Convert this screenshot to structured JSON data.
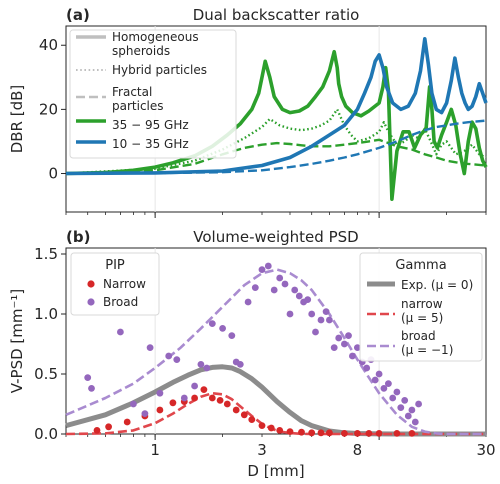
{
  "chart_data": [
    {
      "type": "line",
      "panel_label": "(a)",
      "title": "Dual backscatter ratio",
      "ylabel": "DBR [dB]",
      "xlabel": "",
      "xscale": "log",
      "xlim": [
        0.4,
        30
      ],
      "ylim": [
        -12,
        46
      ],
      "yticks": [
        0,
        20,
        40
      ],
      "grid": true,
      "legend": {
        "placement": "top-left",
        "entries": [
          {
            "label": "Homogeneous spheroids",
            "lines": [
              "Homogeneous",
              "spheroids"
            ],
            "style": "solid-thick-grey"
          },
          {
            "label": "Hybrid particles",
            "lines": [
              "Hybrid particles"
            ],
            "style": "dotted-grey"
          },
          {
            "label": "Fractal particles",
            "lines": [
              "Fractal",
              "particles"
            ],
            "style": "dashed-grey"
          },
          {
            "label": "35 − 95 GHz",
            "lines": [
              "35 − 95 GHz"
            ],
            "style": "solid-green"
          },
          {
            "label": "10 − 35 GHz",
            "lines": [
              "10 − 35 GHz"
            ],
            "style": "solid-blue"
          }
        ]
      },
      "colors": {
        "green": "#2ca02c",
        "blue": "#1f77b4",
        "grey": "#bfbfbf"
      },
      "series": [
        {
          "band": "35 − 95 GHz",
          "particle": "Homogeneous spheroids",
          "style": "solid",
          "color": "#2ca02c",
          "x": [
            0.4,
            0.6,
            0.8,
            1.0,
            1.2,
            1.5,
            1.8,
            2.1,
            2.4,
            2.7,
            2.9,
            3.0,
            3.1,
            3.25,
            3.4,
            3.7,
            4.0,
            4.4,
            4.8,
            5.2,
            5.6,
            6.0,
            6.3,
            6.5,
            6.6,
            6.8,
            7.1,
            7.6,
            8.3,
            9.0,
            10.0,
            10.4,
            10.7,
            11.0,
            11.4,
            12.0,
            12.8,
            13.6,
            14.4,
            15.3,
            16.2,
            16.8,
            17.2,
            17.6,
            18.2,
            19.0,
            20.0,
            21.0,
            22.0,
            23.0,
            24.0,
            25.0,
            26.0,
            27.0,
            28.0,
            29.0,
            30.0
          ],
          "y": [
            0,
            0.3,
            1.0,
            2.0,
            3.3,
            5.5,
            8.5,
            12,
            15.5,
            20,
            25,
            30,
            35,
            30,
            24,
            20,
            19,
            19.5,
            21,
            24,
            27,
            32,
            38,
            33,
            28,
            24,
            21,
            19,
            18,
            19.5,
            22,
            27,
            33,
            26,
            -8,
            7,
            13,
            13,
            8,
            12,
            14,
            27,
            20,
            10,
            8,
            12,
            16,
            20,
            15,
            6,
            0,
            10,
            16,
            14,
            8,
            4,
            2
          ]
        },
        {
          "band": "35 − 95 GHz",
          "particle": "Hybrid particles",
          "style": "dotted",
          "color": "#2ca02c",
          "x": [
            0.4,
            1.0,
            1.5,
            2.0,
            2.5,
            3.0,
            3.25,
            3.6,
            4.0,
            4.5,
            5.0,
            5.5,
            6.0,
            6.5,
            7.0,
            7.5,
            8.0,
            9.0,
            10.0,
            10.5,
            11.0,
            12.0,
            13.0,
            14.0,
            15.0,
            16.0,
            17.0,
            18.0,
            19.0,
            20.0,
            21.0,
            22.0,
            24.0,
            26.0,
            28.0,
            30.0
          ],
          "y": [
            0,
            1.5,
            4,
            7.5,
            11,
            14.5,
            17,
            15,
            14,
            13.5,
            14,
            15,
            16.5,
            20,
            15,
            12,
            10,
            11,
            13,
            16,
            13,
            9,
            10,
            12,
            11,
            14,
            10,
            6,
            9,
            10,
            8,
            6,
            7,
            9,
            6,
            5
          ]
        },
        {
          "band": "35 − 95 GHz",
          "particle": "Fractal particles",
          "style": "dashed",
          "color": "#2ca02c",
          "x": [
            0.4,
            1.0,
            1.5,
            2.0,
            2.5,
            3.0,
            3.5,
            4.0,
            4.5,
            5.0,
            6.0,
            7.0,
            8.0,
            9.0,
            10.0,
            11.0,
            12.0,
            14.0,
            16.0,
            18.0,
            20.0,
            22.0,
            25.0,
            30.0
          ],
          "y": [
            0,
            1,
            3,
            6,
            8,
            9,
            9.5,
            9.2,
            8.8,
            8.5,
            8.5,
            9,
            9.5,
            10,
            10.5,
            9.5,
            8.5,
            7.5,
            6,
            5,
            4,
            3.5,
            3,
            2.5
          ]
        },
        {
          "band": "10 − 35 GHz",
          "particle": "Homogeneous spheroids",
          "style": "solid",
          "color": "#1f77b4",
          "x": [
            0.4,
            1.0,
            2.0,
            3.0,
            4.0,
            5.0,
            6.0,
            7.0,
            8.0,
            8.6,
            9.2,
            9.6,
            10.0,
            10.4,
            10.8,
            11.5,
            12.5,
            13.5,
            14.5,
            15.3,
            16.0,
            16.6,
            17.2,
            18.0,
            19.0,
            20.0,
            21.0,
            21.8,
            22.6,
            23.4,
            24.2,
            25.0,
            26.0,
            27.0,
            28.0,
            29.0,
            30.0
          ],
          "y": [
            0,
            0.2,
            0.8,
            2.5,
            5,
            8.5,
            12,
            15,
            20,
            25,
            30,
            35,
            37,
            33,
            27,
            22,
            20,
            21,
            25,
            32,
            42,
            34,
            25,
            20,
            19,
            22,
            29,
            36,
            30,
            25,
            22,
            20,
            21,
            24,
            28,
            25,
            22
          ]
        },
        {
          "band": "10 − 35 GHz",
          "particle": "Fractal particles",
          "style": "dashed",
          "color": "#1f77b4",
          "x": [
            0.4,
            1.0,
            2.0,
            3.0,
            4.0,
            5.0,
            6.0,
            7.0,
            8.0,
            10.0,
            12.0,
            14.0,
            16.0,
            18.0,
            20.0,
            22.0,
            25.0,
            30.0
          ],
          "y": [
            0,
            0.1,
            0.4,
            1,
            2,
            3,
            4,
            5,
            6,
            8,
            10,
            12,
            13.5,
            14.5,
            15,
            15.5,
            16,
            16.5
          ]
        }
      ]
    },
    {
      "type": "scatter",
      "panel_label": "(b)",
      "title": "Volume-weighted PSD",
      "ylabel": "V-PSD [mm⁻¹]",
      "xlabel": "D [mm]",
      "xscale": "log",
      "xlim": [
        0.4,
        30
      ],
      "ylim": [
        0,
        1.55
      ],
      "xticks": [
        1,
        3,
        8,
        30
      ],
      "yticks": [
        0.0,
        0.5,
        1.0,
        1.5
      ],
      "grid": true,
      "legends": [
        {
          "title": "PIP",
          "placement": "top-left",
          "entries": [
            {
              "label": "Narrow",
              "marker": "dot",
              "color": "#d62728"
            },
            {
              "label": "Broad",
              "marker": "dot",
              "color": "#9467bd"
            }
          ]
        },
        {
          "title": "Gamma",
          "placement": "top-right",
          "entries": [
            {
              "label": "Exp. (μ = 0)",
              "lines": [
                "Exp. (μ = 0)"
              ],
              "style": "solid-thick",
              "color": "#8c8c8c"
            },
            {
              "label": "narrow (μ = 5)",
              "lines": [
                "narrow",
                "(μ = 5)"
              ],
              "style": "dashed",
              "color": "#e0474c"
            },
            {
              "label": "broad (μ = −1)",
              "lines": [
                "broad",
                "(μ = −1)"
              ],
              "style": "dashed",
              "color": "#a98bd0"
            }
          ]
        }
      ],
      "series": [
        {
          "name": "Narrow",
          "kind": "points",
          "color": "#d62728",
          "x": [
            0.55,
            0.62,
            0.75,
            0.9,
            1.05,
            1.2,
            1.35,
            1.5,
            1.65,
            1.8,
            1.95,
            2.1,
            2.3,
            2.5,
            2.7,
            3.0,
            3.3,
            3.6,
            4.0,
            4.5,
            5.0,
            5.5,
            6.0,
            7.0,
            8.0,
            9.0,
            10.0,
            12.0,
            14.0
          ],
          "y": [
            0.03,
            0.06,
            0.1,
            0.15,
            0.2,
            0.26,
            0.27,
            0.3,
            0.37,
            0.3,
            0.28,
            0.25,
            0.2,
            0.16,
            0.12,
            0.07,
            0.05,
            0.03,
            0.02,
            0.015,
            0.01,
            0.01,
            0.01,
            0.005,
            0.005,
            0.005,
            0.005,
            0.005,
            0.005
          ]
        },
        {
          "name": "Broad",
          "kind": "points",
          "color": "#9467bd",
          "x": [
            0.5,
            0.52,
            0.7,
            0.8,
            0.9,
            0.95,
            1.05,
            1.15,
            1.25,
            1.35,
            1.5,
            1.6,
            1.7,
            1.8,
            2.0,
            2.2,
            2.3,
            2.4,
            2.6,
            2.8,
            3.0,
            3.2,
            3.4,
            3.6,
            3.8,
            4.0,
            4.2,
            4.4,
            4.6,
            4.8,
            5.0,
            5.2,
            5.5,
            5.8,
            6.0,
            6.3,
            6.6,
            7.0,
            7.3,
            7.6,
            8.0,
            8.4,
            8.8,
            9.2,
            9.6,
            10.0,
            10.5,
            11.0,
            11.5,
            12.0,
            12.5,
            13.0,
            13.5,
            14.0,
            14.5,
            15.0
          ],
          "y": [
            0.47,
            0.38,
            0.85,
            0.25,
            0.17,
            0.72,
            0.34,
            0.65,
            0.62,
            0.3,
            0.4,
            0.58,
            0.55,
            0.92,
            0.88,
            0.82,
            0.6,
            0.58,
            1.1,
            1.22,
            1.37,
            1.4,
            1.2,
            1.3,
            1.25,
            1.0,
            1.2,
            1.15,
            1.1,
            1.12,
            1.0,
            0.85,
            0.95,
            1.02,
            0.95,
            0.72,
            0.8,
            0.75,
            0.82,
            0.65,
            0.72,
            0.6,
            0.55,
            0.62,
            0.45,
            0.5,
            0.38,
            0.42,
            0.3,
            0.35,
            0.22,
            0.28,
            0.15,
            0.2,
            0.1,
            0.25
          ]
        },
        {
          "name": "Exp. (μ = 0)",
          "kind": "line",
          "style": "solid",
          "color": "#8c8c8c",
          "x": [
            0.4,
            0.6,
            0.8,
            1.0,
            1.2,
            1.4,
            1.6,
            1.8,
            2.0,
            2.2,
            2.4,
            2.7,
            3.0,
            3.5,
            4.0,
            4.5,
            5.0,
            6.0,
            7.0,
            8.0,
            10.0,
            12.0,
            15.0,
            20.0,
            30.0
          ],
          "y": [
            0.07,
            0.16,
            0.26,
            0.35,
            0.43,
            0.49,
            0.535,
            0.555,
            0.56,
            0.55,
            0.52,
            0.46,
            0.39,
            0.27,
            0.18,
            0.11,
            0.07,
            0.025,
            0.01,
            0.004,
            0.001,
            0,
            0,
            0,
            0
          ]
        },
        {
          "name": "narrow (μ = 5)",
          "kind": "line",
          "style": "dashed",
          "color": "#e0474c",
          "x": [
            0.4,
            0.6,
            0.8,
            1.0,
            1.2,
            1.4,
            1.6,
            1.8,
            2.0,
            2.2,
            2.4,
            2.7,
            3.0,
            3.3,
            3.6,
            4.0,
            4.5,
            5.0,
            6.0,
            8.0,
            12.0,
            30.0
          ],
          "y": [
            0,
            0.005,
            0.03,
            0.09,
            0.17,
            0.25,
            0.31,
            0.34,
            0.33,
            0.29,
            0.23,
            0.15,
            0.085,
            0.045,
            0.02,
            0.008,
            0.002,
            0,
            0,
            0,
            0,
            0
          ]
        },
        {
          "name": "broad (μ = −1)",
          "kind": "line",
          "style": "dashed",
          "color": "#a98bd0",
          "x": [
            0.4,
            0.6,
            0.8,
            1.0,
            1.3,
            1.6,
            2.0,
            2.5,
            3.0,
            3.5,
            4.0,
            4.5,
            5.0,
            6.0,
            7.0,
            8.0,
            9.0,
            10.0,
            12.0,
            14.0,
            16.0,
            18.0,
            20.0,
            25.0,
            30.0
          ],
          "y": [
            0.16,
            0.3,
            0.42,
            0.55,
            0.72,
            0.88,
            1.06,
            1.24,
            1.34,
            1.37,
            1.34,
            1.28,
            1.2,
            1.0,
            0.8,
            0.62,
            0.47,
            0.34,
            0.16,
            0.06,
            0.02,
            0.005,
            0,
            0,
            0
          ]
        }
      ]
    }
  ]
}
